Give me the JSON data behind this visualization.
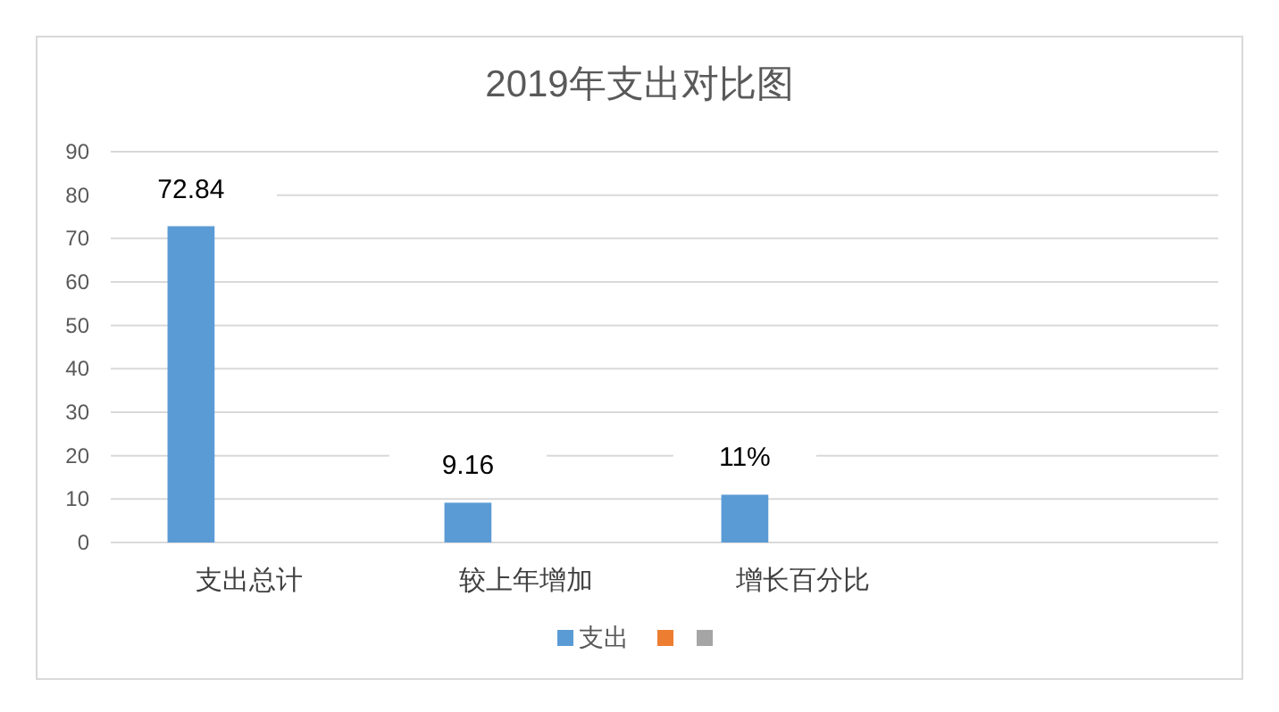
{
  "chart_data": {
    "type": "bar",
    "title": "2019年支出对比图",
    "categories": [
      "支出总计",
      "较上年增加",
      "增长百分比",
      null
    ],
    "series": [
      {
        "name": "支出",
        "color": "#5b9bd5",
        "values": [
          72.84,
          9.16,
          11,
          null
        ],
        "value_labels": [
          "72.84",
          "9.16",
          "11%",
          null
        ]
      },
      {
        "color": "#ed7d31",
        "values": [
          null,
          null,
          null,
          null
        ]
      },
      {
        "color": "#a5a5a5",
        "values": [
          null,
          null,
          null,
          null
        ]
      }
    ],
    "ylim": [
      0,
      90
    ],
    "yticks": [
      0,
      10,
      20,
      30,
      40,
      50,
      60,
      70,
      80,
      90
    ],
    "grid": "y",
    "legend": "bottom"
  }
}
